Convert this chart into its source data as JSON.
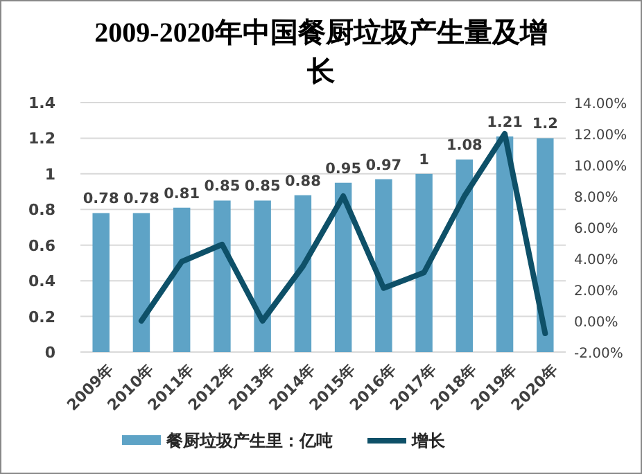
{
  "chart_data": {
    "type": "bar",
    "title": "2009-2020年中国餐厨垃圾产生量及增长",
    "categories": [
      "2009年",
      "2010年",
      "2011年",
      "2012年",
      "2013年",
      "2014年",
      "2015年",
      "2016年",
      "2017年",
      "2018年",
      "2019年",
      "2020年"
    ],
    "series": [
      {
        "name": "餐厨垃圾产生里：亿吨",
        "color": "#5ea3c6",
        "values": [
          0.78,
          0.78,
          0.81,
          0.85,
          0.85,
          0.88,
          0.95,
          0.97,
          1,
          1.08,
          1.21,
          1.2
        ],
        "value_labels": [
          "0.78",
          "0.78",
          "0.81",
          "0.85",
          "0.85",
          "0.88",
          "0.95",
          "0.97",
          "1",
          "1.08",
          "1.21",
          "1.2"
        ]
      },
      {
        "name": "增长",
        "type": "line",
        "axis": "y2",
        "color": "#0e5068",
        "values": [
          null,
          0,
          3.8,
          4.9,
          0,
          3.5,
          8.0,
          2.1,
          3.1,
          8.0,
          12.0,
          -0.8
        ]
      }
    ],
    "ylim": [
      0,
      1.4
    ],
    "yticks": [
      0,
      0.2,
      0.4,
      0.6,
      0.8,
      1,
      1.2,
      1.4
    ],
    "y2lim": [
      -2,
      14
    ],
    "y2ticks": [
      {
        "value": -2,
        "label": "-2.00%"
      },
      {
        "value": 0,
        "label": "0.00%"
      },
      {
        "value": 2,
        "label": "2.00%"
      },
      {
        "value": 4,
        "label": "4.00%"
      },
      {
        "value": 6,
        "label": "6.00%"
      },
      {
        "value": 8,
        "label": "8.00%"
      },
      {
        "value": 10,
        "label": "10.00%"
      },
      {
        "value": 12,
        "label": "12.00%"
      },
      {
        "value": 14,
        "label": "14.00%"
      }
    ],
    "grid": "y",
    "legend": "bottom",
    "marker": "none"
  }
}
